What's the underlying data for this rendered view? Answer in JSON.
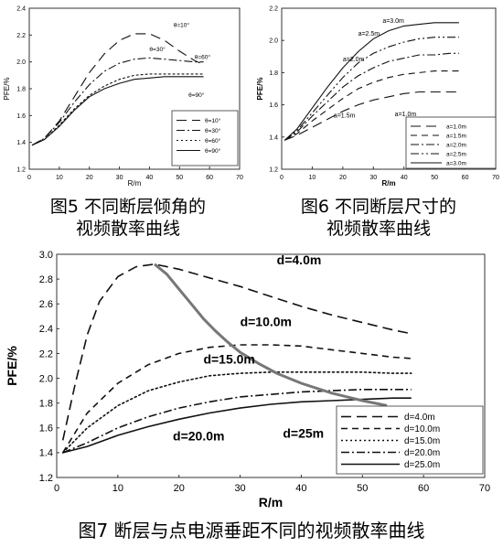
{
  "figures": [
    {
      "caption_lines": [
        "图5 不同断层倾角的",
        "视频散率曲线"
      ]
    },
    {
      "caption_lines": [
        "图6 不同断层尺寸的",
        "视频散率曲线"
      ]
    },
    {
      "caption_lines": [
        "图7 断层与点电源垂距不同的视频散率曲线"
      ]
    }
  ],
  "chart_data": [
    {
      "type": "line",
      "title": "",
      "xlabel": "R/m",
      "ylabel": "PFE/%",
      "xlim": [
        0,
        70
      ],
      "ylim": [
        1.2,
        2.4
      ],
      "xticks": [
        "0",
        "10",
        "20",
        "30",
        "40",
        "50",
        "60",
        "70"
      ],
      "yticks": [
        "1.2",
        "1.4",
        "1.6",
        "1.8",
        "2.0",
        "2.2",
        "2.4"
      ],
      "grid": false,
      "legend_position": "bottom-right",
      "series": [
        {
          "name": "θ=10°",
          "style": "long-dash",
          "x": [
            1,
            5,
            10,
            15,
            20,
            25,
            30,
            35,
            40,
            45,
            50,
            55,
            58
          ],
          "y": [
            1.38,
            1.43,
            1.56,
            1.74,
            1.92,
            2.06,
            2.16,
            2.21,
            2.21,
            2.16,
            2.08,
            2.01,
            1.98
          ]
        },
        {
          "name": "θ=30°",
          "style": "dash-dot",
          "x": [
            1,
            5,
            10,
            15,
            20,
            25,
            30,
            35,
            40,
            45,
            50,
            55,
            58
          ],
          "y": [
            1.38,
            1.43,
            1.55,
            1.7,
            1.83,
            1.93,
            1.99,
            2.02,
            2.03,
            2.02,
            2.01,
            2.0,
            2.0
          ]
        },
        {
          "name": "θ=60°",
          "style": "dotted",
          "x": [
            1,
            5,
            10,
            15,
            20,
            25,
            30,
            35,
            40,
            45,
            50,
            55,
            58
          ],
          "y": [
            1.38,
            1.42,
            1.53,
            1.65,
            1.75,
            1.82,
            1.87,
            1.9,
            1.91,
            1.91,
            1.91,
            1.91,
            1.91
          ]
        },
        {
          "name": "θ=90°",
          "style": "solid",
          "x": [
            1,
            5,
            10,
            15,
            20,
            25,
            30,
            35,
            40,
            45,
            50,
            55,
            58
          ],
          "y": [
            1.38,
            1.42,
            1.52,
            1.64,
            1.74,
            1.8,
            1.84,
            1.87,
            1.88,
            1.89,
            1.89,
            1.89,
            1.89
          ]
        }
      ],
      "annotations": [
        {
          "text": "θ=10°",
          "x": 48,
          "y": 2.26
        },
        {
          "text": "θ=30°",
          "x": 40,
          "y": 2.08
        },
        {
          "text": "θ=60°",
          "x": 55,
          "y": 2.02
        },
        {
          "text": "θ=90°",
          "x": 53,
          "y": 1.74
        }
      ]
    },
    {
      "type": "line",
      "title": "",
      "xlabel": "R/m",
      "ylabel": "PFE/%",
      "xlim": [
        0,
        70
      ],
      "ylim": [
        1.2,
        2.2
      ],
      "xticks": [
        "0",
        "10",
        "20",
        "30",
        "40",
        "50",
        "60",
        "70"
      ],
      "yticks": [
        "1.2",
        "1.4",
        "1.6",
        "1.8",
        "2.0",
        "2.2"
      ],
      "grid": false,
      "legend_position": "bottom-right",
      "series": [
        {
          "name": "a=1.0m",
          "style": "long-dash",
          "x": [
            1,
            5,
            10,
            15,
            20,
            25,
            30,
            35,
            40,
            45,
            50,
            55,
            58
          ],
          "y": [
            1.38,
            1.41,
            1.46,
            1.51,
            1.56,
            1.6,
            1.63,
            1.65,
            1.67,
            1.68,
            1.68,
            1.68,
            1.68
          ]
        },
        {
          "name": "a=1.5m",
          "style": "dash",
          "x": [
            1,
            5,
            10,
            15,
            20,
            25,
            30,
            35,
            40,
            45,
            50,
            55,
            58
          ],
          "y": [
            1.38,
            1.42,
            1.5,
            1.57,
            1.64,
            1.7,
            1.74,
            1.77,
            1.79,
            1.8,
            1.81,
            1.81,
            1.81
          ]
        },
        {
          "name": "a=2.0m",
          "style": "dash-dot",
          "x": [
            1,
            5,
            10,
            15,
            20,
            25,
            30,
            35,
            40,
            45,
            50,
            55,
            58
          ],
          "y": [
            1.38,
            1.43,
            1.53,
            1.62,
            1.71,
            1.78,
            1.83,
            1.87,
            1.89,
            1.91,
            1.91,
            1.92,
            1.92
          ]
        },
        {
          "name": "a=2.5m",
          "style": "dash-dot-dot",
          "x": [
            1,
            5,
            10,
            15,
            20,
            25,
            30,
            35,
            40,
            45,
            50,
            55,
            58
          ],
          "y": [
            1.38,
            1.44,
            1.55,
            1.66,
            1.77,
            1.86,
            1.92,
            1.96,
            1.99,
            2.01,
            2.02,
            2.02,
            2.02
          ]
        },
        {
          "name": "a=3.0m",
          "style": "solid",
          "x": [
            1,
            5,
            10,
            15,
            20,
            25,
            30,
            35,
            40,
            45,
            50,
            55,
            58
          ],
          "y": [
            1.38,
            1.45,
            1.58,
            1.71,
            1.83,
            1.93,
            2.01,
            2.06,
            2.09,
            2.1,
            2.11,
            2.11,
            2.11
          ]
        }
      ],
      "annotations": [
        {
          "text": "a=3.0m",
          "x": 33,
          "y": 2.11
        },
        {
          "text": "a=2.5m",
          "x": 25,
          "y": 2.03
        },
        {
          "text": "a=2.0m",
          "x": 20,
          "y": 1.87
        },
        {
          "text": "a=1.5m",
          "x": 17,
          "y": 1.52
        },
        {
          "text": "a=1.0m",
          "x": 37,
          "y": 1.53
        }
      ]
    },
    {
      "type": "line",
      "title": "",
      "xlabel": "R/m",
      "ylabel": "PFE/%",
      "xlim": [
        0,
        70
      ],
      "ylim": [
        1.2,
        3.0
      ],
      "xticks": [
        "0",
        "10",
        "20",
        "30",
        "40",
        "50",
        "60",
        "70"
      ],
      "yticks": [
        "1.2",
        "1.4",
        "1.6",
        "1.8",
        "2.0",
        "2.2",
        "2.4",
        "2.6",
        "2.8",
        "3.0"
      ],
      "grid": false,
      "legend_position": "bottom-right",
      "series": [
        {
          "name": "d=4.0m",
          "style": "long-dash",
          "x": [
            1,
            3,
            5,
            7,
            10,
            13,
            16,
            20,
            25,
            30,
            35,
            40,
            45,
            50,
            55,
            58
          ],
          "y": [
            1.5,
            1.95,
            2.35,
            2.62,
            2.82,
            2.9,
            2.92,
            2.88,
            2.81,
            2.74,
            2.66,
            2.58,
            2.51,
            2.45,
            2.39,
            2.36
          ]
        },
        {
          "name": "d=10.0m",
          "style": "dash",
          "x": [
            1,
            5,
            10,
            15,
            20,
            25,
            30,
            35,
            40,
            45,
            50,
            55,
            58
          ],
          "y": [
            1.4,
            1.72,
            1.96,
            2.11,
            2.2,
            2.25,
            2.27,
            2.27,
            2.26,
            2.23,
            2.2,
            2.17,
            2.16
          ]
        },
        {
          "name": "d=15.0m",
          "style": "dotted",
          "x": [
            1,
            5,
            10,
            15,
            20,
            25,
            30,
            35,
            40,
            45,
            50,
            55,
            58
          ],
          "y": [
            1.4,
            1.6,
            1.78,
            1.9,
            1.97,
            2.02,
            2.04,
            2.05,
            2.05,
            2.05,
            2.05,
            2.04,
            2.04
          ]
        },
        {
          "name": "d=20.0m",
          "style": "dash-dot",
          "x": [
            1,
            5,
            10,
            15,
            20,
            25,
            30,
            35,
            40,
            45,
            50,
            55,
            58
          ],
          "y": [
            1.4,
            1.48,
            1.6,
            1.69,
            1.76,
            1.81,
            1.85,
            1.87,
            1.89,
            1.9,
            1.91,
            1.91,
            1.91
          ]
        },
        {
          "name": "d=25.0m",
          "style": "solid",
          "x": [
            1,
            5,
            10,
            15,
            20,
            25,
            30,
            35,
            40,
            45,
            50,
            55,
            58
          ],
          "y": [
            1.4,
            1.45,
            1.54,
            1.61,
            1.67,
            1.72,
            1.76,
            1.79,
            1.81,
            1.82,
            1.83,
            1.84,
            1.84
          ]
        },
        {
          "name": "",
          "style": "thick-gray",
          "x": [
            16,
            18,
            20,
            22,
            24,
            26,
            28,
            30,
            33,
            36,
            40,
            45,
            50,
            54
          ],
          "y": [
            2.92,
            2.84,
            2.72,
            2.6,
            2.48,
            2.38,
            2.29,
            2.21,
            2.12,
            2.04,
            1.96,
            1.88,
            1.82,
            1.78
          ]
        }
      ],
      "annotations": [
        {
          "text": "d=4.0m",
          "x": 36,
          "y": 2.92
        },
        {
          "text": "d=10.0m",
          "x": 30,
          "y": 2.42
        },
        {
          "text": "d=15.0m",
          "x": 24,
          "y": 2.12
        },
        {
          "text": "d=20.0m",
          "x": 19,
          "y": 1.5
        },
        {
          "text": "d=25m",
          "x": 37,
          "y": 1.52
        }
      ]
    }
  ]
}
